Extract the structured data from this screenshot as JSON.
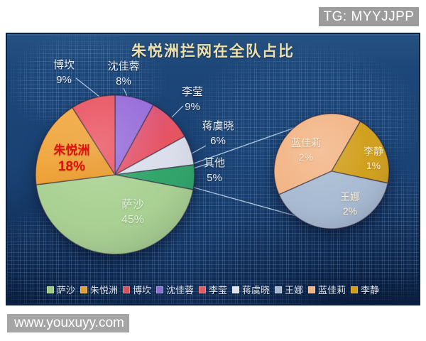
{
  "watermarks": {
    "top_badge": "TG: MYYJJPP",
    "bottom_badge": "www.youxuyy.com"
  },
  "chart_data": {
    "type": "pie",
    "variant": "pie-of-pie",
    "title": "朱悦洲拦网在全队占比",
    "legend_position": "bottom",
    "background_color": "#1a4172",
    "main_pie": {
      "start_angle": 0,
      "slices": [
        {
          "name": "沈佳蓉",
          "value": 8,
          "label": "8%",
          "color": "#9468d8"
        },
        {
          "name": "李莹",
          "value": 9,
          "label": "9%",
          "color": "#e8474e",
          "gradient": {
            "from": "#d1578f",
            "to": "#ea4a50"
          }
        },
        {
          "name": "蒋虞晓",
          "value": 6,
          "label": "6%",
          "color": "#d9ddeb"
        },
        {
          "name": "其他",
          "value": 5,
          "label": "5%",
          "color": "#28a164"
        },
        {
          "name": "萨沙",
          "value": 45,
          "label": "45%",
          "color": "#a7d08f"
        },
        {
          "name": "朱悦洲",
          "value": 18,
          "label": "18%",
          "color": "#f2a437",
          "gradient": {
            "from": "#f6b04a",
            "to": "#e8941f"
          },
          "highlighted": true
        },
        {
          "name": "博坎",
          "value": 9,
          "label": "9%",
          "color": "#e8505e"
        }
      ]
    },
    "secondary_pie": {
      "start_angle": 246,
      "slices": [
        {
          "name": "蓝佳莉",
          "value": 2,
          "label": "2%",
          "color": "#f2b383"
        },
        {
          "name": "李静",
          "value": 1,
          "label": "1%",
          "color": "#cf9c15"
        },
        {
          "name": "王娜",
          "value": 2,
          "label": "2%",
          "color": "#a5b9d1"
        }
      ]
    },
    "legend": [
      {
        "name": "萨沙",
        "color": "#9fcc82"
      },
      {
        "name": "朱悦洲",
        "color": "#e0a03c"
      },
      {
        "name": "博坎",
        "color": "#cf5560"
      },
      {
        "name": "沈佳蓉",
        "color": "#8a70cf"
      },
      {
        "name": "李莹",
        "color": "#e25c66"
      },
      {
        "name": "蒋虞晓",
        "color": "#dfe2ec"
      },
      {
        "name": "王娜",
        "color": "#a6b6cc"
      },
      {
        "name": "蓝佳莉",
        "color": "#efb387"
      },
      {
        "name": "李静",
        "color": "#cf9c1d"
      }
    ]
  }
}
